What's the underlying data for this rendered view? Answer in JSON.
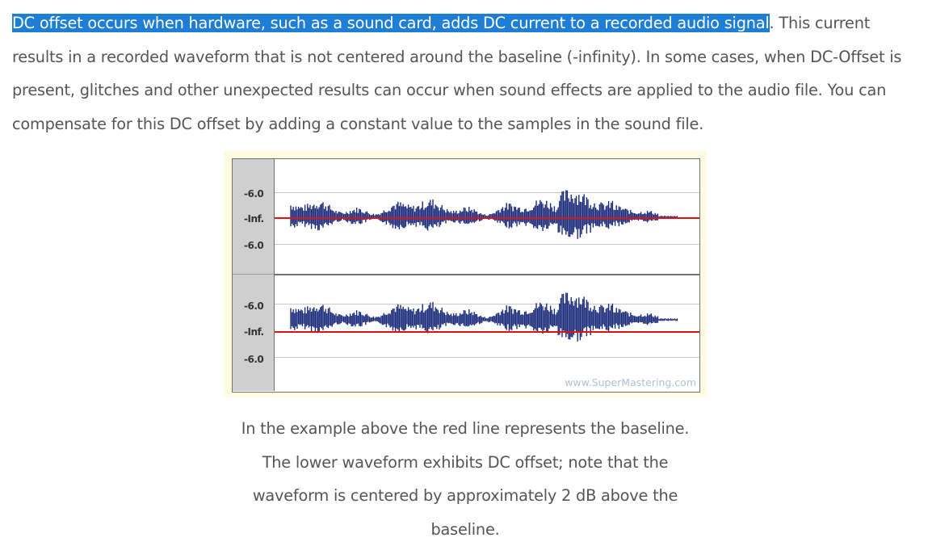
{
  "paragraph": {
    "highlighted": "DC offset occurs when hardware, such as a sound card, adds DC current to a recorded audio signal",
    "rest": ". This current results in a recorded waveform that is not centered around the baseline (-infinity). In some cases, when DC-Offset is present, glitches and other unexpected results can occur when sound effects are applied to the audio file. You can compensate for this DC offset by adding a constant value to the samples in the sound file."
  },
  "figure": {
    "top_panel_labels": [
      "-6.0",
      "-Inf.",
      "-6.0"
    ],
    "bottom_panel_labels": [
      "-6.0",
      "-Inf.",
      "-6.0"
    ],
    "watermark": "www.SuperMastering.com",
    "colors": {
      "waveform": "#1a2a7a",
      "baseline": "#e01010",
      "ruler": "#cfcfcf",
      "frame_bg": "#fdfbe0"
    }
  },
  "caption": {
    "lines": [
      "In the example above the red line represents the baseline.",
      "The lower waveform exhibits DC offset; note that the",
      "waveform is centered by approximately 2 dB above the",
      "baseline."
    ]
  }
}
